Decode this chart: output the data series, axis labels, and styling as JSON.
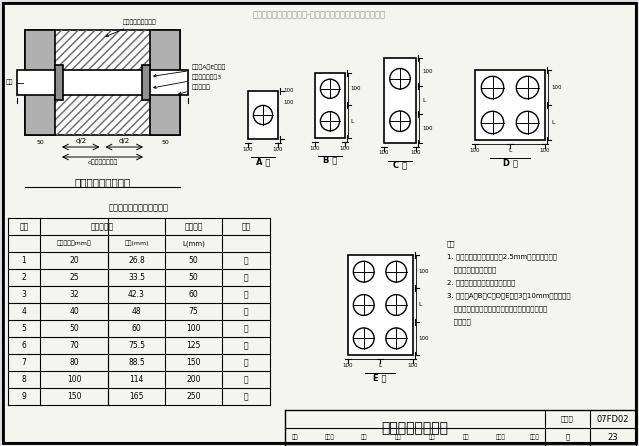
{
  "watermark": "装饰门安装大样资料下载-地下室人防机电安装最全图文详解",
  "main_title": "穿墙管密闭肋示意图",
  "table_title": "热镀锌钢管和密闭肋尺寸表",
  "detail_title": "穿墙管密闭肋详图",
  "drawing_number": "07FD02",
  "figure_label": "图集号",
  "page_label": "页",
  "page_number": "23",
  "bg_color": "#e0e0e0",
  "paper_color": "#f5f5f0",
  "table_data": [
    [
      "1",
      "20",
      "26.8",
      "50",
      "－"
    ],
    [
      "2",
      "25",
      "33.5",
      "50",
      "－"
    ],
    [
      "3",
      "32",
      "42.3",
      "60",
      "－"
    ],
    [
      "4",
      "40",
      "48",
      "75",
      "－"
    ],
    [
      "5",
      "50",
      "60",
      "100",
      "－"
    ],
    [
      "6",
      "70",
      "75.5",
      "125",
      "－"
    ],
    [
      "7",
      "80",
      "88.5",
      "150",
      "－"
    ],
    [
      "8",
      "100",
      "114",
      "200",
      "－"
    ],
    [
      "9",
      "150",
      "165",
      "250",
      "－"
    ]
  ],
  "notes": [
    "注：",
    "1. 穿墙管应采用壁厚不小于2.5mm的热镀锌钢管，",
    "   管道数量由设计确定。",
    "2. 防护密闭穿墙管需另加抗力片。",
    "3. 密闭肋A、B、C、D、E型为3～10mm厚的热镀锌",
    "   锌钢板，与热镀锌钢管及面焊接，同时应与结构钢",
    "   筋焊牢。"
  ],
  "bottom_left_labels": [
    "审核",
    "标准员",
    "校对",
    "罗洁",
    "宁光",
    "设计",
    "张红英",
    "张伙英"
  ],
  "bottom_right_label": "页",
  "type_labels": [
    "A 型",
    "B 型",
    "C 型",
    "D 型",
    "E 型"
  ]
}
